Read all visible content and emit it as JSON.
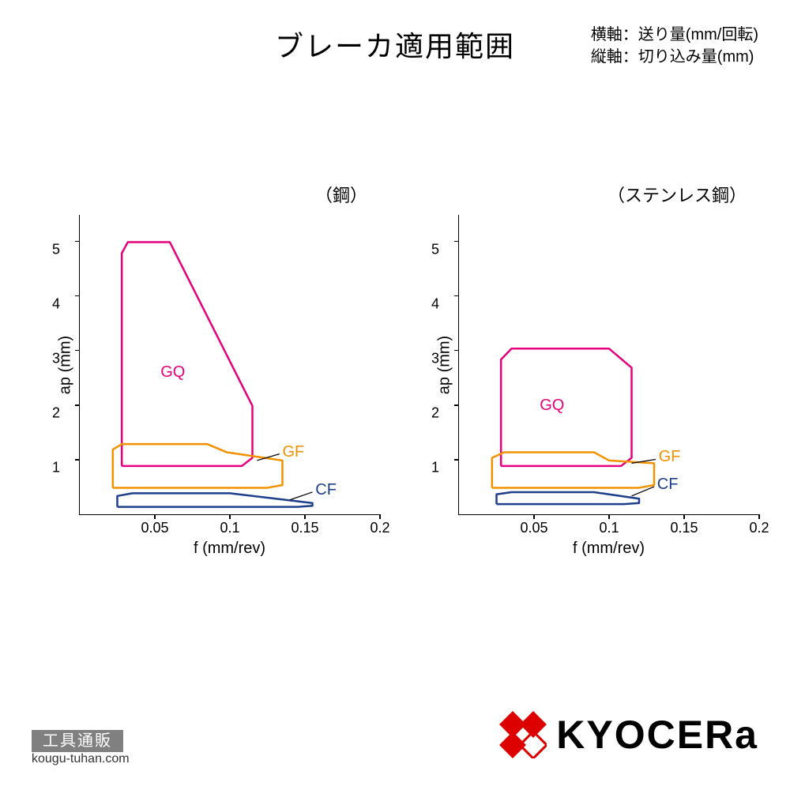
{
  "title": "ブレーカ適用範囲",
  "axis_description": {
    "x": "横軸：送り量(mm/回転)",
    "y": "縦軸：切り込み量(mm)"
  },
  "x_axis_label": "f (mm/rev)",
  "y_axis_label": "ap (mm)",
  "xlim": [
    0,
    0.2
  ],
  "ylim": [
    0,
    5.5
  ],
  "x_ticks": [
    0.05,
    0.1,
    0.15,
    0.2
  ],
  "y_ticks": [
    1,
    2,
    3,
    4,
    5
  ],
  "colors": {
    "GQ": "#e6007e",
    "GF": "#f39200",
    "CF": "#1d3f8c",
    "axis": "#000000",
    "bg": "#ffffff"
  },
  "stroke_width": 2.5,
  "label_fontsize": 20,
  "tick_fontsize": 18,
  "title_fontsize": 36,
  "charts": [
    {
      "title": "（鋼）",
      "series": [
        {
          "name": "GQ",
          "color_key": "GQ",
          "points": [
            [
              0.028,
              0.9
            ],
            [
              0.028,
              4.8
            ],
            [
              0.032,
              5.0
            ],
            [
              0.06,
              5.0
            ],
            [
              0.115,
              2.0
            ],
            [
              0.115,
              1.05
            ],
            [
              0.108,
              0.9
            ],
            [
              0.028,
              0.9
            ]
          ],
          "label_pos": [
            0.062,
            2.6
          ]
        },
        {
          "name": "GF",
          "color_key": "GF",
          "points": [
            [
              0.022,
              0.5
            ],
            [
              0.022,
              1.2
            ],
            [
              0.028,
              1.3
            ],
            [
              0.085,
              1.3
            ],
            [
              0.098,
              1.15
            ],
            [
              0.135,
              1.0
            ],
            [
              0.135,
              0.55
            ],
            [
              0.125,
              0.5
            ],
            [
              0.022,
              0.5
            ]
          ],
          "label_pos": [
            0.135,
            1.15
          ],
          "label_anchor": "start",
          "leader": [
            [
              0.118,
              1.0
            ],
            [
              0.133,
              1.12
            ]
          ]
        },
        {
          "name": "CF",
          "color_key": "CF",
          "points": [
            [
              0.025,
              0.15
            ],
            [
              0.025,
              0.35
            ],
            [
              0.035,
              0.4
            ],
            [
              0.1,
              0.4
            ],
            [
              0.155,
              0.22
            ],
            [
              0.155,
              0.17
            ],
            [
              0.145,
              0.15
            ],
            [
              0.025,
              0.15
            ]
          ],
          "label_pos": [
            0.157,
            0.45
          ],
          "label_anchor": "start",
          "leader": [
            [
              0.14,
              0.28
            ],
            [
              0.155,
              0.42
            ]
          ]
        }
      ]
    },
    {
      "title": "（ステンレス鋼）",
      "series": [
        {
          "name": "GQ",
          "color_key": "GQ",
          "points": [
            [
              0.028,
              0.9
            ],
            [
              0.028,
              2.85
            ],
            [
              0.035,
              3.05
            ],
            [
              0.1,
              3.05
            ],
            [
              0.115,
              2.7
            ],
            [
              0.115,
              1.05
            ],
            [
              0.108,
              0.9
            ],
            [
              0.028,
              0.9
            ]
          ],
          "label_pos": [
            0.062,
            2.0
          ]
        },
        {
          "name": "GF",
          "color_key": "GF",
          "points": [
            [
              0.022,
              0.5
            ],
            [
              0.022,
              1.05
            ],
            [
              0.03,
              1.15
            ],
            [
              0.09,
              1.15
            ],
            [
              0.1,
              1.0
            ],
            [
              0.13,
              0.95
            ],
            [
              0.13,
              0.55
            ],
            [
              0.12,
              0.5
            ],
            [
              0.022,
              0.5
            ]
          ],
          "label_pos": [
            0.133,
            1.05
          ],
          "label_anchor": "start",
          "leader": [
            [
              0.115,
              0.95
            ],
            [
              0.131,
              1.02
            ]
          ]
        },
        {
          "name": "CF",
          "color_key": "CF",
          "points": [
            [
              0.025,
              0.2
            ],
            [
              0.025,
              0.38
            ],
            [
              0.035,
              0.42
            ],
            [
              0.09,
              0.42
            ],
            [
              0.12,
              0.3
            ],
            [
              0.12,
              0.22
            ],
            [
              0.11,
              0.2
            ],
            [
              0.025,
              0.2
            ]
          ],
          "label_pos": [
            0.132,
            0.55
          ],
          "label_anchor": "start",
          "leader": [
            [
              0.115,
              0.35
            ],
            [
              0.13,
              0.52
            ]
          ]
        }
      ]
    }
  ],
  "footer": {
    "shop_name": "工具通販",
    "shop_url": "kougu-tuhan.com",
    "logo_text": "KYOCERa",
    "logo_color": "#dc0000"
  }
}
